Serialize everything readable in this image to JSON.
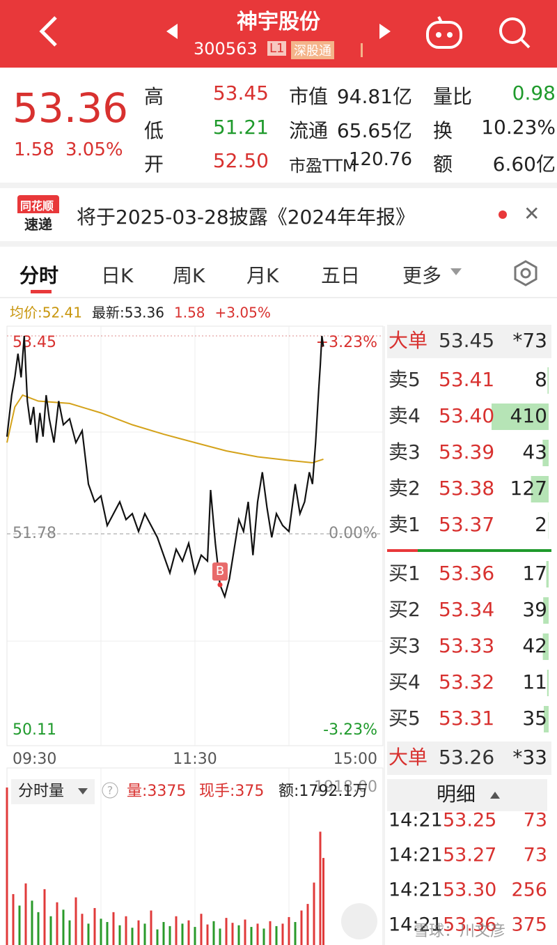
{
  "header": {
    "title": "神宇股份",
    "code": "300563",
    "level": "L1",
    "tag": "深股通"
  },
  "quote": {
    "price": "53.36",
    "change": "1.58",
    "change_pct": "3.05%",
    "stats": [
      {
        "label": "高",
        "value": "53.45"
      },
      {
        "label": "低",
        "value": "51.21"
      },
      {
        "label": "开",
        "value": "52.50"
      },
      {
        "label": "市值",
        "value": "94.81亿"
      },
      {
        "label": "流通",
        "value": "65.65亿"
      },
      {
        "label": "市盈TTM",
        "value": "120.76"
      },
      {
        "label": "量比",
        "value": "0.98"
      },
      {
        "label": "换",
        "value": "10.23%"
      },
      {
        "label": "额",
        "value": "6.60亿"
      }
    ]
  },
  "notice": {
    "logo_top": "同花顺",
    "logo_bottom": "速递",
    "text": "将于2025-03-28披露《2024年年报》"
  },
  "tabs": [
    "分时",
    "日K",
    "周K",
    "月K",
    "五日",
    "更多"
  ],
  "chart": {
    "type": "line",
    "info": {
      "avg": "均价:52.41",
      "latest": "最新:53.36",
      "change": "1.58",
      "change_pct": "+3.05%"
    },
    "xlim": [
      0,
      240
    ],
    "xticks": [
      {
        "value": 0,
        "label": "09:30"
      },
      {
        "value": 120,
        "label": "11:30"
      },
      {
        "value": 240,
        "label": "15:00"
      }
    ],
    "ylim": [
      50.11,
      53.45
    ],
    "yticks": [
      {
        "value": 53.45,
        "label": "53.45"
      },
      {
        "value": 51.78,
        "label": "51.78"
      },
      {
        "value": 50.11,
        "label": "50.11"
      }
    ],
    "y2lim": [
      -3.23,
      3.23
    ],
    "y2ticks": [
      {
        "value": 3.23,
        "label": "+3.23%"
      },
      {
        "value": 0,
        "label": "0.00%"
      },
      {
        "value": -3.23,
        "label": "-3.23%"
      }
    ],
    "price": {
      "color": "#111111",
      "x": [
        0,
        3,
        5,
        7,
        9,
        11,
        13,
        15,
        17,
        19,
        21,
        23,
        25,
        27,
        30,
        33,
        36,
        40,
        44,
        48,
        52,
        56,
        60,
        64,
        68,
        72,
        76,
        80,
        84,
        88,
        92,
        96,
        100,
        104,
        108,
        112,
        116,
        120,
        124,
        128,
        130,
        133,
        136,
        139,
        142,
        145,
        148,
        151,
        154,
        157,
        160,
        163,
        166,
        169,
        172,
        176,
        180,
        184,
        187,
        190,
        193,
        195,
        197,
        199,
        200,
        201,
        202
      ],
      "values": [
        52.6,
        52.95,
        53.1,
        53.3,
        53.1,
        53.45,
        52.9,
        52.7,
        52.85,
        52.55,
        52.8,
        52.6,
        52.95,
        52.75,
        52.55,
        52.9,
        52.7,
        52.75,
        52.55,
        52.65,
        52.2,
        52.05,
        52.1,
        51.85,
        51.95,
        52.05,
        51.9,
        51.95,
        51.8,
        51.95,
        51.85,
        51.75,
        51.6,
        51.45,
        51.65,
        51.55,
        51.7,
        51.45,
        51.6,
        51.55,
        52.15,
        51.7,
        51.35,
        51.25,
        51.4,
        51.65,
        51.9,
        51.8,
        52.05,
        51.6,
        52.05,
        52.3,
        52.0,
        51.75,
        51.95,
        51.85,
        51.8,
        52.2,
        51.95,
        52.05,
        52.3,
        52.2,
        52.55,
        53.0,
        53.2,
        53.45,
        53.36
      ]
    },
    "avg": {
      "color": "#d4a21a",
      "x": [
        0,
        5,
        10,
        20,
        40,
        60,
        80,
        100,
        120,
        140,
        160,
        180,
        195,
        202
      ],
      "values": [
        52.55,
        52.85,
        52.95,
        52.9,
        52.88,
        52.8,
        52.7,
        52.62,
        52.55,
        52.48,
        52.43,
        52.4,
        52.38,
        52.41
      ]
    },
    "marker": "B"
  },
  "volume": {
    "title": "分时量",
    "stats": [
      "量:3375",
      "现手:375",
      "额:1792.1万"
    ],
    "ylim": [
      0,
      1918
    ],
    "yticks": [
      {
        "value": 1918,
        "label": "1918.00"
      }
    ],
    "x": [
      0,
      4,
      8,
      12,
      16,
      20,
      24,
      28,
      32,
      36,
      40,
      44,
      48,
      52,
      56,
      60,
      64,
      68,
      72,
      76,
      80,
      84,
      88,
      92,
      96,
      100,
      104,
      108,
      112,
      116,
      120,
      124,
      128,
      132,
      136,
      140,
      144,
      148,
      152,
      156,
      160,
      164,
      168,
      172,
      176,
      180,
      184,
      188,
      192,
      196,
      200,
      202
    ],
    "values": [
      1918,
      620,
      480,
      750,
      540,
      400,
      680,
      350,
      520,
      430,
      300,
      580,
      380,
      260,
      450,
      320,
      280,
      400,
      240,
      350,
      210,
      300,
      260,
      420,
      190,
      280,
      230,
      350,
      260,
      300,
      220,
      380,
      250,
      290,
      200,
      330,
      270,
      240,
      310,
      220,
      260,
      200,
      290,
      230,
      260,
      340,
      280,
      420,
      500,
      760,
      1380,
      1060
    ],
    "colors": [
      "#e03a3a",
      "#e03a3a",
      "#2a9a2a",
      "#e03a3a",
      "#2a9a2a",
      "#2a9a2a",
      "#e03a3a",
      "#2a9a2a",
      "#e03a3a",
      "#2a9a2a",
      "#2a9a2a",
      "#e03a3a",
      "#e03a3a",
      "#2a9a2a",
      "#e03a3a",
      "#2a9a2a",
      "#2a9a2a",
      "#e03a3a",
      "#2a9a2a",
      "#e03a3a",
      "#2a9a2a",
      "#e03a3a",
      "#2a9a2a",
      "#e03a3a",
      "#2a9a2a",
      "#2a9a2a",
      "#2a9a2a",
      "#e03a3a",
      "#2a9a2a",
      "#e03a3a",
      "#2a9a2a",
      "#e03a3a",
      "#e03a3a",
      "#2a9a2a",
      "#2a9a2a",
      "#e03a3a",
      "#e03a3a",
      "#2a9a2a",
      "#e03a3a",
      "#2a9a2a",
      "#e03a3a",
      "#2a9a2a",
      "#e03a3a",
      "#2a9a2a",
      "#e03a3a",
      "#e03a3a",
      "#2a9a2a",
      "#e03a3a",
      "#e03a3a",
      "#e03a3a",
      "#e03a3a",
      "#e03a3a"
    ]
  },
  "order_book": {
    "volume_color": "#b6e4b6",
    "big_top": {
      "label": "大单",
      "price": "53.45",
      "volume": "*73"
    },
    "asks": [
      {
        "label": "卖5",
        "price": "53.41",
        "volume": 8
      },
      {
        "label": "卖4",
        "price": "53.40",
        "volume": 410
      },
      {
        "label": "卖3",
        "price": "53.39",
        "volume": 43
      },
      {
        "label": "卖2",
        "price": "53.38",
        "volume": 127
      },
      {
        "label": "卖1",
        "price": "53.37",
        "volume": 2
      }
    ],
    "bids": [
      {
        "label": "买1",
        "price": "53.36",
        "volume": 17
      },
      {
        "label": "买2",
        "price": "53.34",
        "volume": 39
      },
      {
        "label": "买3",
        "price": "53.33",
        "volume": 42
      },
      {
        "label": "买4",
        "price": "53.32",
        "volume": 11
      },
      {
        "label": "买5",
        "price": "53.31",
        "volume": 35
      }
    ],
    "big_bottom": {
      "label": "大单",
      "price": "53.26",
      "volume": "*33"
    }
  },
  "details": {
    "title": "明细",
    "rows": [
      [
        "14:21",
        "53.25",
        73
      ],
      [
        "14:21",
        "53.27",
        73
      ],
      [
        "14:21",
        "53.30",
        256
      ],
      [
        "14:21",
        "53.36",
        375
      ]
    ]
  },
  "watermark": "雪球：川文彦"
}
